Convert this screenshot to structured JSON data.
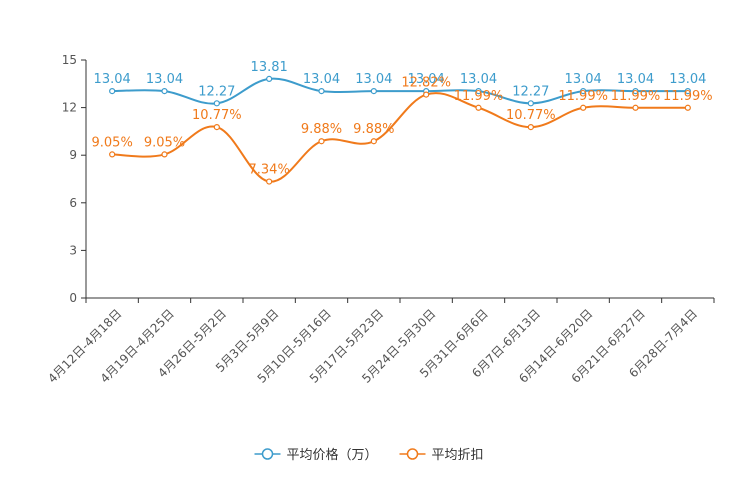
{
  "chart_data": {
    "type": "line",
    "title": "",
    "xlabel": "",
    "ylabel": "",
    "ylim": [
      0,
      15
    ],
    "yticks": [
      0,
      3,
      6,
      9,
      12,
      15
    ],
    "grid": false,
    "legend_position": "bottom",
    "categories": [
      "4月12日-4月18日",
      "4月19日-4月25日",
      "4月26日-5月2日",
      "5月3日-5月9日",
      "5月10日-5月16日",
      "5月17日-5月23日",
      "5月24日-5月30日",
      "5月31日-6月6日",
      "6月7日-6月13日",
      "6月14日-6月20日",
      "6月21日-6月27日",
      "6月28日-7月4日"
    ],
    "series": [
      {
        "name": "平均价格（万）",
        "color": "#3d9ccc",
        "values": [
          13.04,
          13.04,
          12.27,
          13.81,
          13.04,
          13.04,
          13.04,
          13.04,
          12.27,
          13.04,
          13.04,
          13.04
        ],
        "labels": [
          "13.04",
          "13.04",
          "12.27",
          "13.81",
          "13.04",
          "13.04",
          "13.04",
          "13.04",
          "12.27",
          "13.04",
          "13.04",
          "13.04"
        ]
      },
      {
        "name": "平均折扣",
        "color": "#f07a1b",
        "values": [
          9.05,
          9.05,
          10.77,
          7.34,
          9.88,
          9.88,
          12.82,
          11.99,
          10.77,
          11.99,
          11.99,
          11.99
        ],
        "labels": [
          "9.05%",
          "9.05%",
          "10.77%",
          "7.34%",
          "9.88%",
          "9.88%",
          "12.82%",
          "11.99%",
          "10.77%",
          "11.99%",
          "11.99%",
          "11.99%"
        ]
      }
    ]
  }
}
